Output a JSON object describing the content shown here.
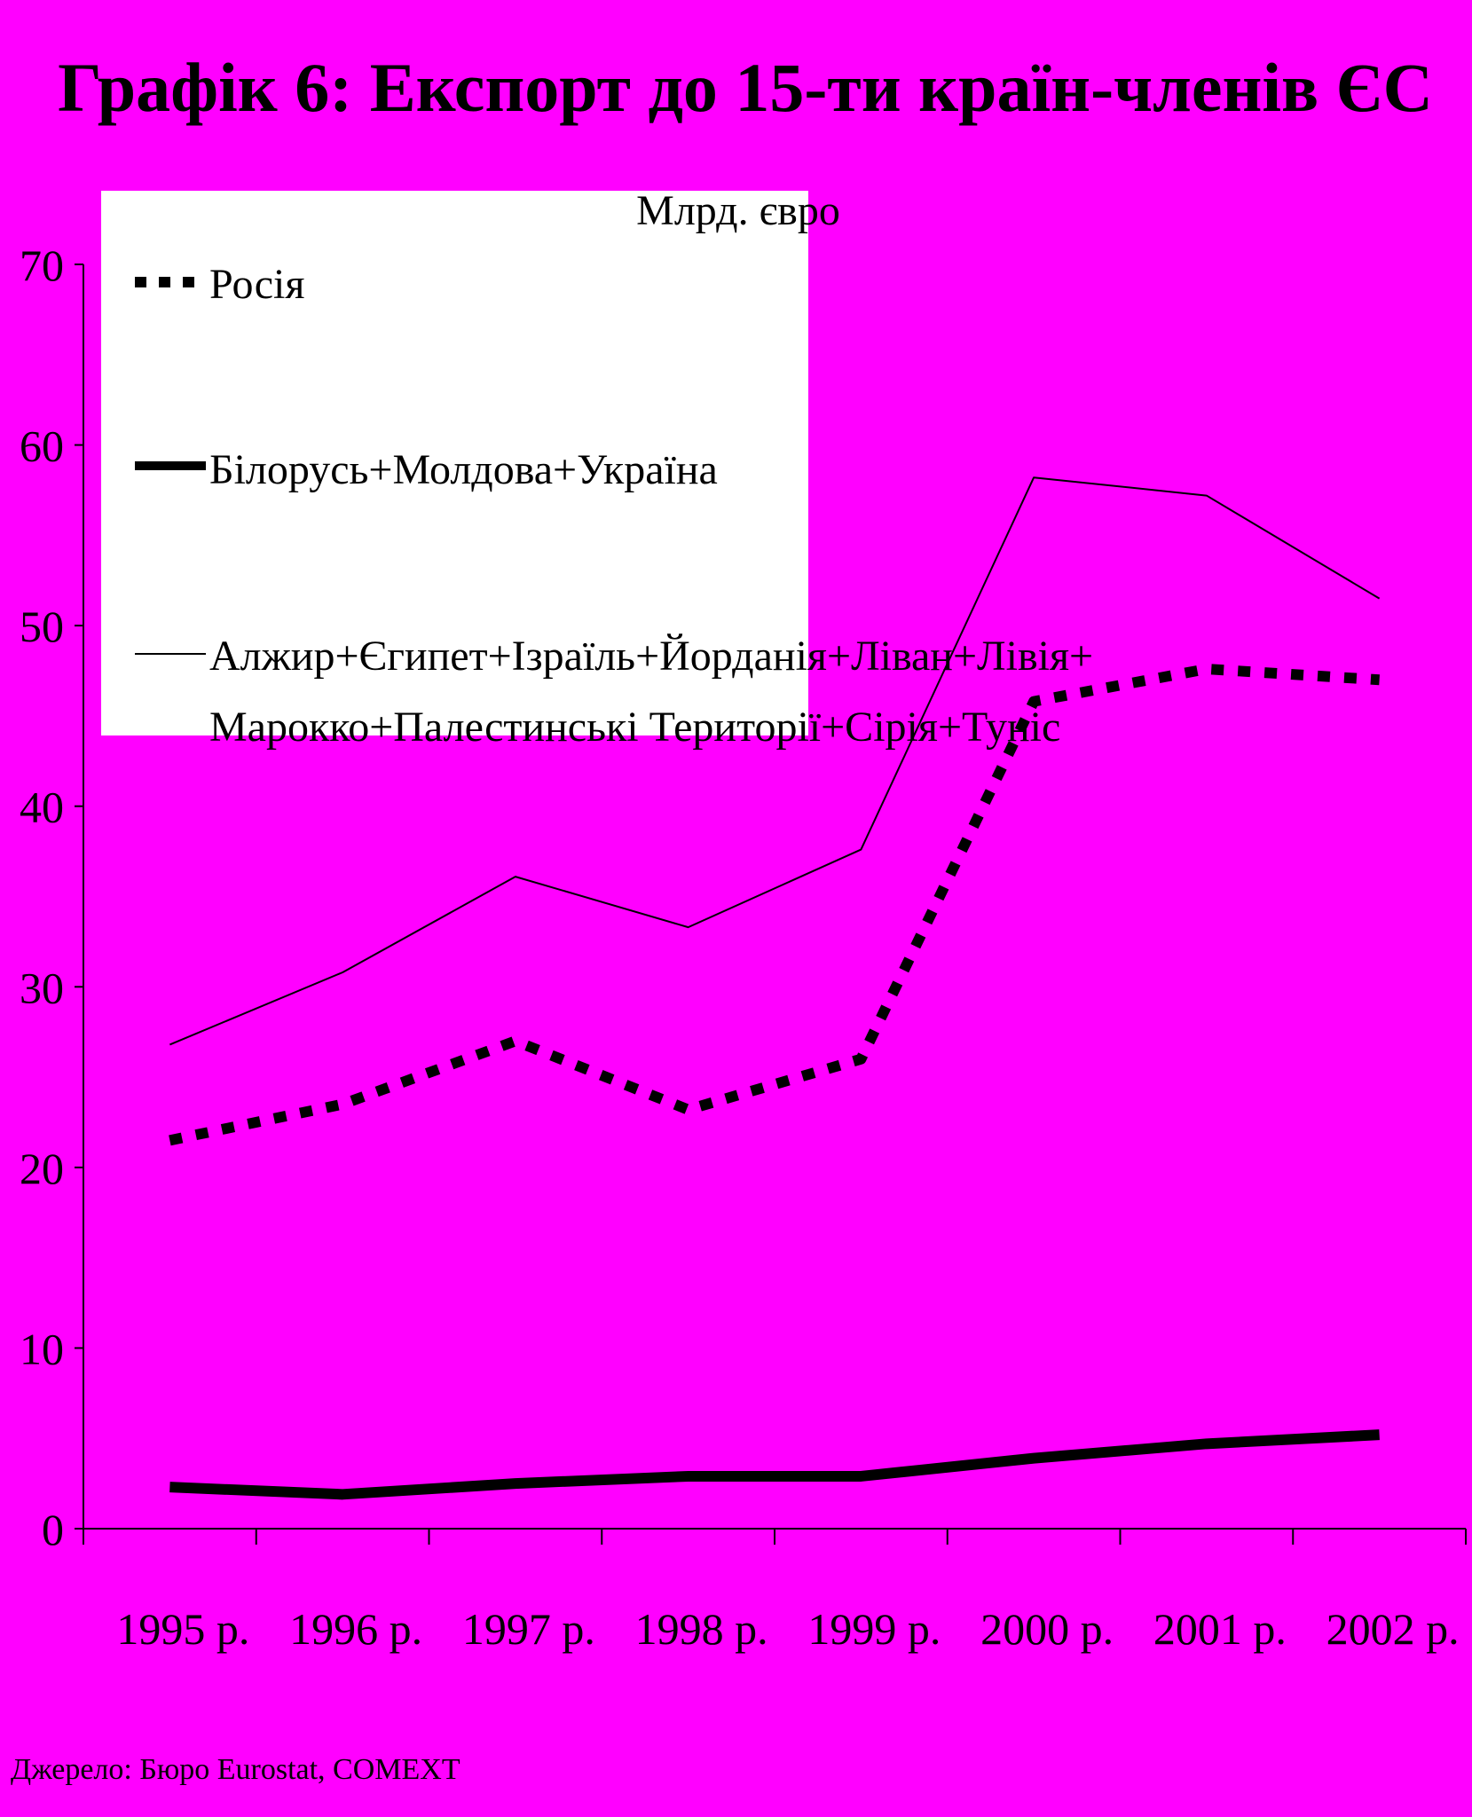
{
  "chart_data": {
    "type": "line",
    "title": "Графік 6: Експорт до 15-ти країн-членів ЄС",
    "ylabel": "Млрд. євро",
    "xlabel": "",
    "categories": [
      "1995 р.",
      "1996 р.",
      "1997 р.",
      "1998 р.",
      "1999 р.",
      "2000 р.",
      "2001 р.",
      "2002 р."
    ],
    "ylim": [
      0,
      70
    ],
    "yticks": [
      "0",
      "10",
      "20",
      "30",
      "40",
      "50",
      "60",
      "70"
    ],
    "grid": false,
    "legend_position": "top-left",
    "series": [
      {
        "name": "Росія",
        "style": "dotted-thick",
        "values": [
          21.5,
          23.5,
          27.0,
          23.2,
          26.0,
          45.8,
          47.6,
          47.0
        ]
      },
      {
        "name": "Білорусь+Молдова+Україна",
        "style": "solid-thick",
        "values": [
          2.3,
          1.9,
          2.5,
          2.9,
          2.9,
          3.9,
          4.7,
          5.2
        ]
      },
      {
        "name": "Алжир+Єгипет+Ізраїль+Йорданія+Ліван+Лівія+",
        "name_line2": "Марокко+Палестинські Території+Сірія+Туніс",
        "style": "solid-thin",
        "values": [
          26.8,
          30.8,
          36.1,
          33.3,
          37.6,
          58.2,
          57.2,
          51.5
        ]
      }
    ],
    "colors": {
      "background": "#FF00FF",
      "legend_box": "#FFFFFF",
      "lines": "#000000"
    }
  },
  "source": "Джерело: Бюро Eurostat, COMEXT"
}
